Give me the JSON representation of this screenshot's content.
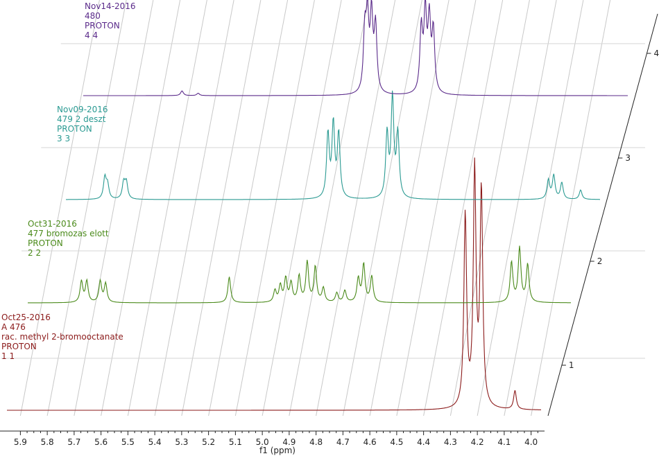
{
  "chart_data": {
    "type": "line",
    "xlabel": "f1 (ppm)",
    "xlim": [
      5.95,
      3.95
    ],
    "x_ticks": [
      "5.9",
      "5.8",
      "5.7",
      "5.6",
      "5.5",
      "5.4",
      "5.3",
      "5.2",
      "5.1",
      "5.0",
      "4.9",
      "4.8",
      "4.7",
      "4.6",
      "4.5",
      "4.4",
      "4.3",
      "4.2",
      "4.1",
      "4.0"
    ],
    "stack_ticks": [
      "1",
      "2",
      "3",
      "4"
    ],
    "series": [
      {
        "name": "1",
        "color": "#8b1a1a",
        "lines": [
          "Oct25-2016",
          "A 476",
          " rac. methyl 2-bromooctanate",
          "PROTON",
          " 1 1"
        ],
        "peaks": [
          {
            "ppm": 4.245,
            "h": 0.82
          },
          {
            "ppm": 4.21,
            "h": 1.0
          },
          {
            "ppm": 4.185,
            "h": 0.92
          },
          {
            "ppm": 4.06,
            "h": 0.08
          }
        ]
      },
      {
        "name": "2",
        "color": "#4a8a1a",
        "lines": [
          "Oct31-2016",
          "477 bromozas elott",
          "PROTON",
          " 2 2"
        ],
        "peaks": [
          {
            "ppm": 5.74,
            "h": 0.09
          },
          {
            "ppm": 5.72,
            "h": 0.09
          },
          {
            "ppm": 5.67,
            "h": 0.09
          },
          {
            "ppm": 5.65,
            "h": 0.08
          },
          {
            "ppm": 5.19,
            "h": 0.11
          },
          {
            "ppm": 5.02,
            "h": 0.05
          },
          {
            "ppm": 5.0,
            "h": 0.07
          },
          {
            "ppm": 4.98,
            "h": 0.1
          },
          {
            "ppm": 4.96,
            "h": 0.08
          },
          {
            "ppm": 4.93,
            "h": 0.11
          },
          {
            "ppm": 4.9,
            "h": 0.17
          },
          {
            "ppm": 4.87,
            "h": 0.15
          },
          {
            "ppm": 4.84,
            "h": 0.06
          },
          {
            "ppm": 4.79,
            "h": 0.04
          },
          {
            "ppm": 4.76,
            "h": 0.05
          },
          {
            "ppm": 4.71,
            "h": 0.1
          },
          {
            "ppm": 4.69,
            "h": 0.16
          },
          {
            "ppm": 4.66,
            "h": 0.11
          },
          {
            "ppm": 4.14,
            "h": 0.17
          },
          {
            "ppm": 4.11,
            "h": 0.23
          },
          {
            "ppm": 4.08,
            "h": 0.16
          }
        ]
      },
      {
        "name": "3",
        "color": "#2a9a92",
        "lines": [
          "Nov09-2016",
          "479 2 deszt",
          "PROTON",
          " 3 3"
        ],
        "peaks": [
          {
            "ppm": 5.72,
            "h": 0.09
          },
          {
            "ppm": 5.71,
            "h": 0.06
          },
          {
            "ppm": 5.65,
            "h": 0.07
          },
          {
            "ppm": 5.64,
            "h": 0.07
          },
          {
            "ppm": 4.89,
            "h": 0.27
          },
          {
            "ppm": 4.87,
            "h": 0.31
          },
          {
            "ppm": 4.85,
            "h": 0.27
          },
          {
            "ppm": 4.67,
            "h": 0.27
          },
          {
            "ppm": 4.65,
            "h": 0.42
          },
          {
            "ppm": 4.63,
            "h": 0.27
          },
          {
            "ppm": 4.07,
            "h": 0.08
          },
          {
            "ppm": 4.05,
            "h": 0.1
          },
          {
            "ppm": 4.02,
            "h": 0.07
          },
          {
            "ppm": 3.95,
            "h": 0.04
          }
        ]
      },
      {
        "name": "4",
        "color": "#5a2a8a",
        "lines": [
          "Nov14-2016",
          "480",
          "PROTON",
          " 4 4"
        ],
        "peaks": [
          {
            "ppm": 5.5,
            "h": 0.02
          },
          {
            "ppm": 5.44,
            "h": 0.01
          },
          {
            "ppm": 4.82,
            "h": 0.25
          },
          {
            "ppm": 4.81,
            "h": 0.3
          },
          {
            "ppm": 4.795,
            "h": 0.32
          },
          {
            "ppm": 4.78,
            "h": 0.28
          },
          {
            "ppm": 4.61,
            "h": 0.27
          },
          {
            "ppm": 4.595,
            "h": 0.33
          },
          {
            "ppm": 4.58,
            "h": 0.3
          },
          {
            "ppm": 4.565,
            "h": 0.26
          }
        ]
      }
    ]
  }
}
